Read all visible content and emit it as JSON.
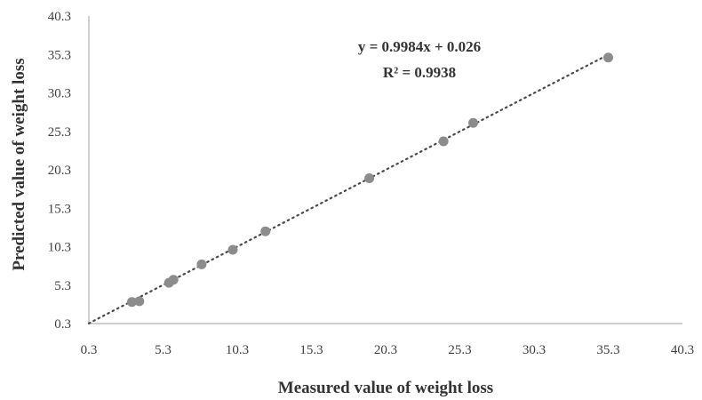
{
  "chart_data": {
    "type": "scatter",
    "xlabel": "Measured value of weight loss",
    "ylabel": "Predicted value of weight loss",
    "xlim": [
      0.3,
      40.3
    ],
    "ylim": [
      0.3,
      40.3
    ],
    "x_ticks": [
      "0.3",
      "5.3",
      "10.3",
      "15.3",
      "20.3",
      "25.3",
      "30.3",
      "35.3",
      "40.3"
    ],
    "y_ticks": [
      "0.3",
      "5.3",
      "10.3",
      "15.3",
      "20.3",
      "25.3",
      "30.3",
      "35.3",
      "40.3"
    ],
    "grid": false,
    "series": [
      {
        "x": [
          3.2,
          3.7,
          5.7,
          6.0,
          7.9,
          10.0,
          12.2,
          19.2,
          24.2,
          26.2,
          35.3
        ],
        "y": [
          3.1,
          3.2,
          5.6,
          6.0,
          8.0,
          9.9,
          12.3,
          19.2,
          24.0,
          26.4,
          34.9
        ]
      }
    ],
    "trendline": {
      "slope": 0.9984,
      "intercept": 0.026,
      "style": "dotted",
      "x_range": [
        0.3,
        35.3
      ]
    },
    "annotations": [
      "y = 0.9984x + 0.026",
      "R² = 0.9938"
    ],
    "colors": {
      "marker": "#8c8c8c",
      "trendline": "#4a4a4a",
      "axis": "#bfbfbf",
      "text": "#404040"
    }
  }
}
